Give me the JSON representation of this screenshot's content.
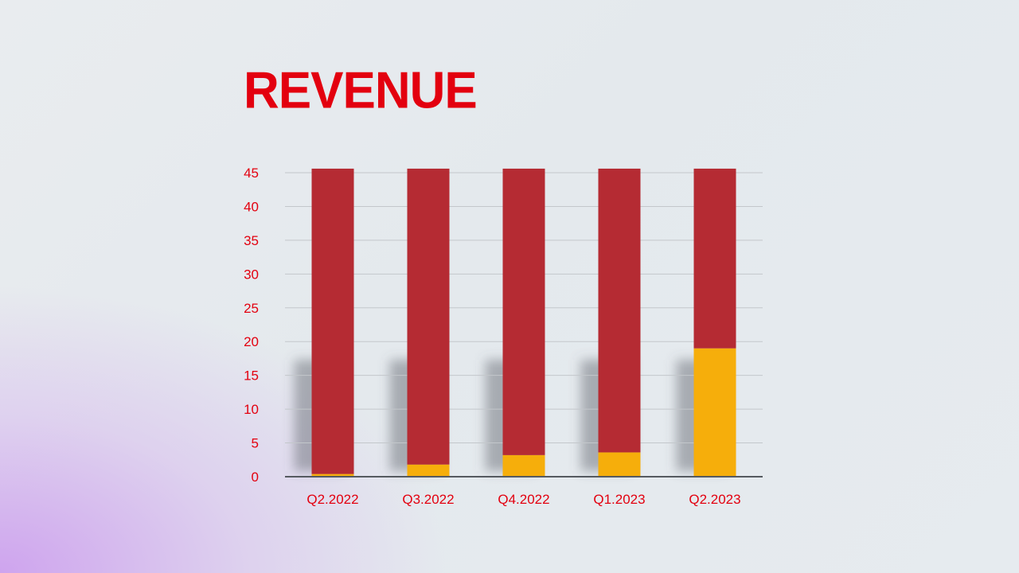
{
  "chart_data": {
    "type": "bar",
    "stacked": true,
    "title": "REVENUE",
    "categories": [
      "Q2.2022",
      "Q3.2022",
      "Q4.2022",
      "Q1.2023",
      "Q2.2023"
    ],
    "series": [
      {
        "values": [
          0.4,
          1.8,
          3.2,
          3.6,
          19.0
        ],
        "color": "#f6ae0b"
      },
      {
        "values": [
          45.2,
          43.8,
          42.4,
          42.0,
          26.6
        ],
        "color": "#b52b33"
      }
    ],
    "yticks": [
      0,
      5,
      10,
      15,
      20,
      25,
      30,
      35,
      40,
      45
    ],
    "ylim": [
      0,
      46
    ],
    "grid": true,
    "legend": "none",
    "label_color": "#e3000f"
  }
}
